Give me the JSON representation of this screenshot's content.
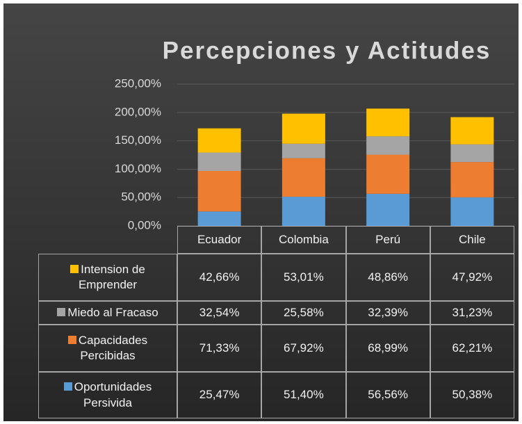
{
  "chart_data": {
    "type": "bar",
    "stacked": true,
    "title": "Percepciones y Actitudes",
    "categories": [
      "Ecuador",
      "Colombia",
      "Perú",
      "Chile"
    ],
    "series": [
      {
        "name": "Oportunidades Persivida",
        "color": "#5b9bd5",
        "values": [
          25.47,
          51.4,
          56.56,
          50.38
        ],
        "value_labels": [
          "25,47%",
          "51,40%",
          "56,56%",
          "50,38%"
        ]
      },
      {
        "name": "Capacidades Percibidas",
        "color": "#ed7d31",
        "values": [
          71.33,
          67.92,
          68.99,
          62.21
        ],
        "value_labels": [
          "71,33%",
          "67,92%",
          "68,99%",
          "62,21%"
        ]
      },
      {
        "name": "Miedo al Fracaso",
        "color": "#a5a5a5",
        "values": [
          32.54,
          25.58,
          32.39,
          31.23
        ],
        "value_labels": [
          "32,54%",
          "25,58%",
          "32,39%",
          "31,23%"
        ]
      },
      {
        "name": "Intension de Emprender",
        "color": "#ffc000",
        "values": [
          42.66,
          53.01,
          48.86,
          47.92
        ],
        "value_labels": [
          "42,66%",
          "53,01%",
          "48,86%",
          "47,92%"
        ]
      }
    ],
    "ylim": [
      0,
      250
    ],
    "yticks": [
      {
        "value": 0,
        "label": "0,00%"
      },
      {
        "value": 50,
        "label": "50,00%"
      },
      {
        "value": 100,
        "label": "100,00%"
      },
      {
        "value": 150,
        "label": "150,00%"
      },
      {
        "value": 200,
        "label": "200,00%"
      },
      {
        "value": 250,
        "label": "250,00%"
      }
    ],
    "grid": true
  }
}
